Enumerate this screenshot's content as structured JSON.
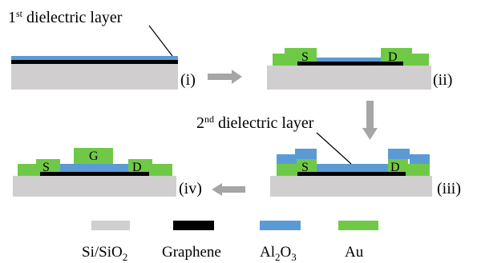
{
  "colors": {
    "substrate": "#D0CECE",
    "graphene": "#000000",
    "dielectric": "#5B9BD5",
    "gold": "#70C946",
    "arrow": "#A6A6A6"
  },
  "callouts": {
    "first": {
      "num": "1",
      "sup": "st",
      "text": " dielectric layer"
    },
    "second": {
      "num": "2",
      "sup": "nd",
      "text": " dielectric layer"
    }
  },
  "steps": {
    "i": "(i)",
    "ii": "(ii)",
    "iii": "(iii)",
    "iv": "(iv)"
  },
  "electrodes": {
    "source": "S",
    "drain": "D",
    "gate": "G"
  },
  "legend": {
    "substrate": {
      "main": "Si/SiO",
      "sub": "2"
    },
    "graphene": {
      "main": "Graphene"
    },
    "dielectric": {
      "parts": [
        "Al",
        "2",
        "O",
        "3"
      ]
    },
    "gold": {
      "main": "Au"
    }
  }
}
